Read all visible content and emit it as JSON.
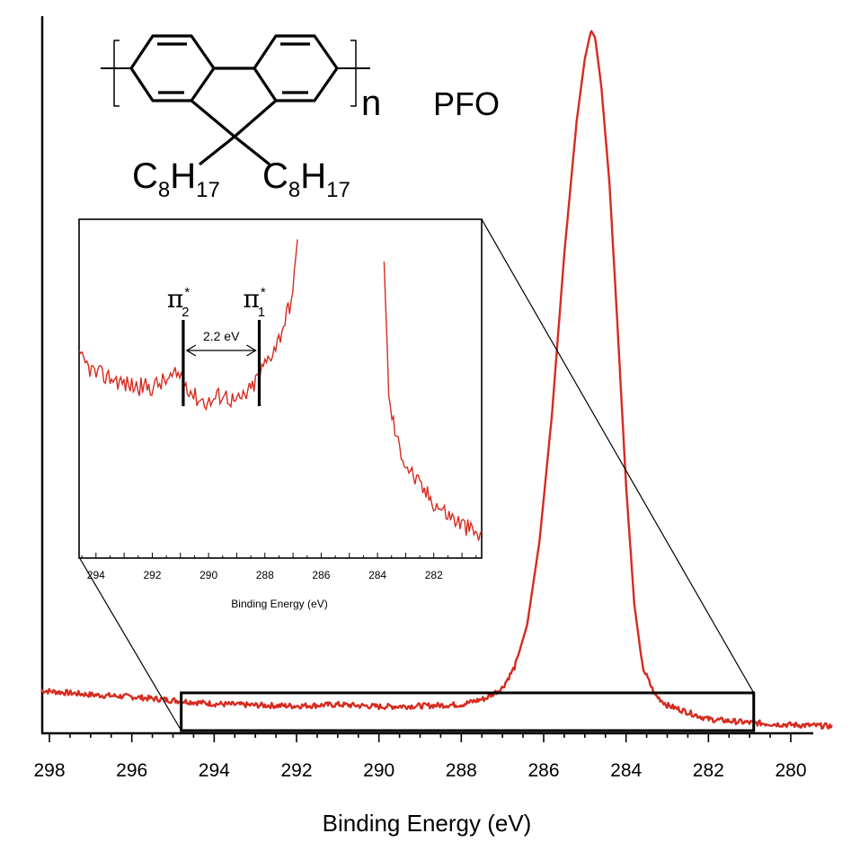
{
  "chart_data": [
    {
      "type": "line",
      "xlabel": "Binding Energy (eV)",
      "x_ticks": [
        298,
        296,
        294,
        292,
        290,
        288,
        286,
        284,
        282,
        280
      ],
      "xlim": [
        298.2,
        279
      ],
      "ylim": [
        0,
        1.0
      ],
      "x_reversed": true,
      "series": [
        {
          "color": "#d62b1f",
          "x": [
            298.2,
            297,
            296,
            295,
            294,
            293,
            292,
            291,
            290,
            289,
            288,
            287.4,
            287,
            286.7,
            286.4,
            286.1,
            285.8,
            285.5,
            285.2,
            285.0,
            284.85,
            284.75,
            284.6,
            284.4,
            284.2,
            284.0,
            283.8,
            283.6,
            283.3,
            283.0,
            282.5,
            282,
            281,
            280,
            279
          ],
          "values": [
            0.056,
            0.05,
            0.047,
            0.042,
            0.037,
            0.035,
            0.034,
            0.036,
            0.033,
            0.034,
            0.036,
            0.045,
            0.06,
            0.09,
            0.15,
            0.27,
            0.45,
            0.68,
            0.87,
            0.96,
            1.0,
            0.99,
            0.92,
            0.78,
            0.57,
            0.35,
            0.18,
            0.09,
            0.05,
            0.035,
            0.025,
            0.015,
            0.01,
            0.007,
            0.005
          ]
        }
      ],
      "zoom_region": {
        "x_from": 294.8,
        "x_to": 280.9
      }
    },
    {
      "type": "line",
      "xlabel": "Binding Energy (eV)",
      "x_ticks": [
        294,
        292,
        290,
        288,
        286,
        284,
        282
      ],
      "xlim": [
        294.6,
        280.3
      ],
      "ylim": [
        0,
        1.0
      ],
      "x_reversed": true,
      "series": [
        {
          "color": "#d62b1f",
          "x": [
            294.6,
            294.0,
            293.5,
            293.0,
            292.5,
            292.0,
            291.5,
            291.0,
            290.5,
            290.0,
            289.5,
            289.0,
            288.5,
            288.0,
            287.5,
            287.0,
            286.8,
            283.8,
            283.6,
            283.3,
            283.0,
            282.5,
            282.0,
            281.5,
            281.0,
            280.5,
            280.3
          ],
          "values": [
            0.58,
            0.53,
            0.52,
            0.5,
            0.49,
            0.49,
            0.51,
            0.53,
            0.46,
            0.44,
            0.47,
            0.44,
            0.48,
            0.56,
            0.64,
            0.78,
            1.0,
            1.0,
            0.45,
            0.32,
            0.25,
            0.18,
            0.13,
            0.09,
            0.06,
            0.03,
            0.02
          ]
        }
      ],
      "annotations": [
        {
          "label_main": "π",
          "label_sup": "*",
          "label_sub": "2",
          "x": 290.9
        },
        {
          "label_main": "π",
          "label_sup": "*",
          "label_sub": "1",
          "x": 288.2
        },
        {
          "label": "2.2 eV"
        }
      ]
    }
  ],
  "structure": {
    "repeat_unit_letter": "n",
    "name": "PFO",
    "substituent_main": "C",
    "substituent_sub_8": "8",
    "substituent_h": "H",
    "substituent_sub_17": "17"
  },
  "colors": {
    "curve": "#d62b1f",
    "axis": "#000000"
  }
}
